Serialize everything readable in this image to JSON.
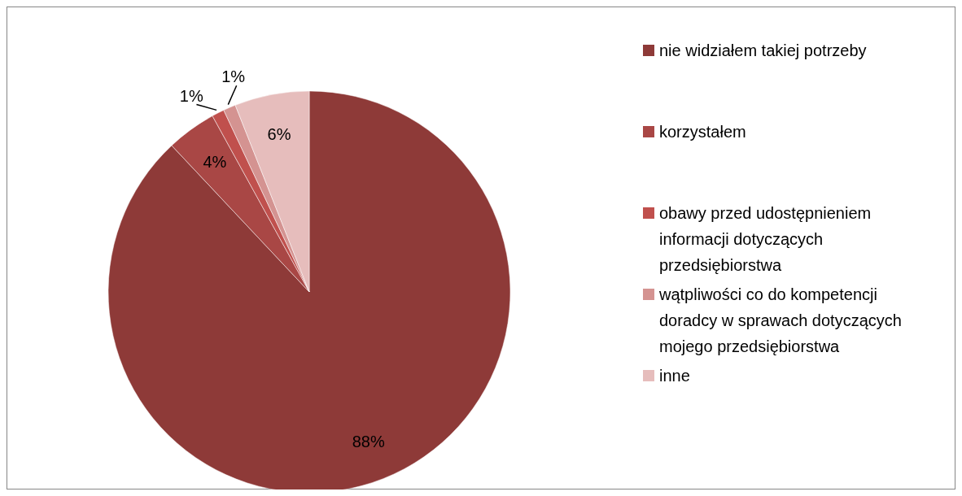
{
  "chart_data": {
    "type": "pie",
    "categories": [
      "nie widziałem takiej potrzeby",
      "korzystałem",
      "obawy przed udostępnieniem informacji dotyczących przedsiębiorstwa",
      "wątpliwości co do kompetencji doradcy w sprawach dotyczących mojego przedsiębiorstwa",
      "inne"
    ],
    "values": [
      88,
      4,
      1,
      1,
      6
    ],
    "colors": [
      "#8e3a38",
      "#a94745",
      "#c0504d",
      "#d49391",
      "#e6bdbc"
    ],
    "value_labels": [
      "88%",
      "4%",
      "1%",
      "1%",
      "6%"
    ],
    "legend": "right"
  }
}
